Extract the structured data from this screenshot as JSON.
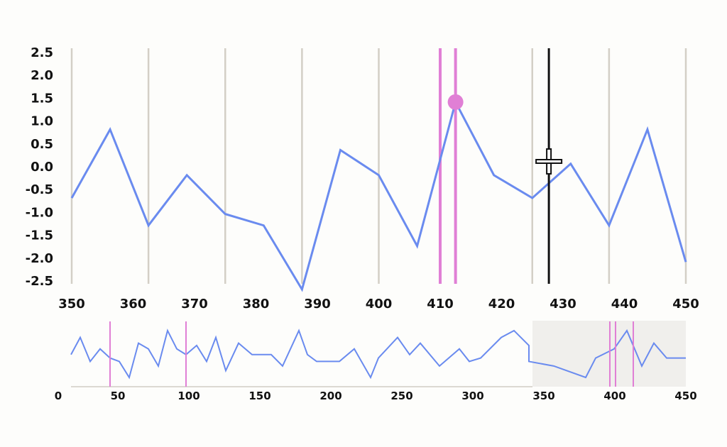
{
  "chart_data": [
    {
      "type": "line",
      "view": "main",
      "xlim": [
        350,
        450
      ],
      "ylim": [
        -2.5,
        2.5
      ],
      "x_ticks": [
        "350",
        "360",
        "370",
        "380",
        "390",
        "400",
        "410",
        "420",
        "430",
        "440",
        "450"
      ],
      "y_ticks": [
        "2.5",
        "2.0",
        "1.5",
        "1.0",
        "0.5",
        "0.0",
        "-0.5",
        "-1.0",
        "-1.5",
        "-2.0",
        "-2.5"
      ],
      "vertical_gridlines_at": [
        350,
        362.5,
        375,
        387.5,
        400,
        425,
        437.5,
        450
      ],
      "series": [
        {
          "x": [
            350,
            356.25,
            362.5,
            368.75,
            375,
            381.25,
            387.5,
            393.75,
            400,
            406.25,
            412.5,
            418.75,
            425,
            431.25,
            437.5,
            443.75,
            450
          ],
          "y": [
            -0.7,
            0.8,
            -1.3,
            -0.2,
            -1.05,
            -1.3,
            -2.7,
            0.35,
            -0.2,
            -1.75,
            1.4,
            -0.2,
            -0.7,
            0.05,
            -1.3,
            0.8,
            -2.1
          ]
        }
      ],
      "highlight_lines": [
        410,
        412.5
      ],
      "highlight_point": {
        "x": 412.5,
        "y": 1.4
      },
      "cursor_line": 427.7,
      "colors": {
        "line": "#6a8bef",
        "highlight": "#e07fd5",
        "grid": "#d3cfc6",
        "cursor": "#111111"
      }
    },
    {
      "type": "line",
      "view": "overview",
      "xlim": [
        0,
        450
      ],
      "x_ticks": [
        "0",
        "50",
        "100",
        "150",
        "200",
        "250",
        "300",
        "350",
        "400",
        "450"
      ],
      "series": [
        {
          "x": [
            17,
            23.5,
            30.5,
            37.5,
            44.5,
            51,
            58,
            64.5,
            71.5,
            78.5,
            85,
            91.5,
            98,
            105.5,
            112.5,
            119,
            126,
            135,
            144.5,
            158,
            166,
            177.5,
            183.5,
            190,
            206,
            216.5,
            228,
            233.5,
            247,
            255.5,
            263,
            276.5,
            290.5,
            297.5,
            305.5,
            320,
            329,
            339.5,
            339.5,
            357,
            379.5,
            386.5,
            399.5,
            408.5,
            419,
            427.5,
            436.5,
            450
          ],
          "y": [
            -0.7,
            0.8,
            -1.3,
            -0.2,
            -1.0,
            -1.3,
            -2.7,
            0.3,
            -0.2,
            -1.7,
            1.4,
            -0.2,
            -0.7,
            0.1,
            -1.3,
            0.8,
            -2.1,
            0.3,
            -0.7,
            -0.7,
            -1.7,
            1.4,
            -0.7,
            -1.3,
            -1.3,
            -0.2,
            -2.7,
            -1.0,
            0.8,
            -0.7,
            0.3,
            -1.7,
            -0.2,
            -1.3,
            -1.0,
            0.8,
            1.4,
            0.1,
            -1.3,
            -1.7,
            -2.7,
            -1.0,
            -0.2,
            1.4,
            -1.7,
            0.3,
            -1.0,
            -1.0
          ]
        }
      ],
      "highlight_lines": [
        44.5,
        98,
        396.5,
        400.5,
        413
      ],
      "brush_range": [
        342,
        450
      ],
      "colors": {
        "brush": "#f0efec",
        "axis": "#dcd9d2"
      }
    }
  ]
}
